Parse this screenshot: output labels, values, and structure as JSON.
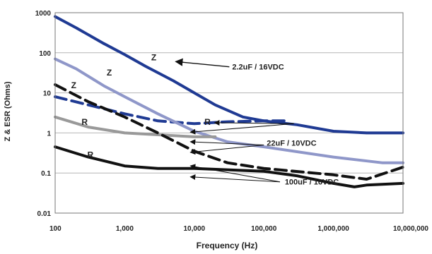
{
  "chart_data": {
    "type": "line",
    "xlabel": "Frequency (Hz)",
    "ylabel": "Z & ESR (Ohms)",
    "x_scale": "log",
    "y_scale": "log",
    "xlim": [
      100,
      10000000
    ],
    "ylim": [
      0.01,
      1000
    ],
    "grid": "horizontal",
    "x_tick_labels": [
      "100",
      "1,000",
      "10,000",
      "100,000",
      "1,000,000",
      "10,000,000"
    ],
    "y_tick_labels": [
      "0.01",
      "0.1",
      "1",
      "10",
      "100",
      "1000"
    ],
    "series": [
      {
        "capacitor": "2.2uF / 16VDC",
        "quantity": "Z",
        "color": "#1f3a93",
        "dash": false,
        "points": [
          [
            100,
            800
          ],
          [
            200,
            420
          ],
          [
            500,
            170
          ],
          [
            1000,
            90
          ],
          [
            2000,
            46
          ],
          [
            5000,
            20
          ],
          [
            10000,
            10
          ],
          [
            20000,
            5
          ],
          [
            50000,
            2.5
          ],
          [
            100000,
            2
          ],
          [
            300000,
            1.6
          ],
          [
            1000000,
            1.1
          ],
          [
            3000000,
            1.0
          ],
          [
            10000000,
            1.0
          ]
        ]
      },
      {
        "capacitor": "2.2uF / 16VDC",
        "quantity": "R",
        "color": "#1f3a93",
        "dash": true,
        "points": [
          [
            100,
            8
          ],
          [
            300,
            5
          ],
          [
            1000,
            3
          ],
          [
            3000,
            2
          ],
          [
            10000,
            1.7
          ],
          [
            30000,
            1.9
          ],
          [
            100000,
            2.0
          ],
          [
            200000,
            2.0
          ]
        ]
      },
      {
        "capacitor": "22uF / 10VDC",
        "quantity": "Z",
        "color": "#8f97c9",
        "dash": false,
        "points": [
          [
            100,
            70
          ],
          [
            200,
            40
          ],
          [
            500,
            15
          ],
          [
            1000,
            8
          ],
          [
            3000,
            3
          ],
          [
            10000,
            1.1
          ],
          [
            30000,
            0.6
          ],
          [
            100000,
            0.45
          ],
          [
            1000000,
            0.25
          ],
          [
            5000000,
            0.18
          ],
          [
            10000000,
            0.18
          ]
        ]
      },
      {
        "capacitor": "22uF / 10VDC",
        "quantity": "R",
        "color": "#999999",
        "dash": false,
        "points": [
          [
            100,
            2.5
          ],
          [
            300,
            1.4
          ],
          [
            1000,
            1.0
          ],
          [
            3000,
            0.9
          ],
          [
            10000,
            0.8
          ],
          [
            20000,
            0.8
          ]
        ]
      },
      {
        "capacitor": "100uF / 16VDC",
        "quantity": "Z",
        "color": "#111111",
        "dash": true,
        "points": [
          [
            100,
            16
          ],
          [
            300,
            6
          ],
          [
            1000,
            2.5
          ],
          [
            3000,
            1.0
          ],
          [
            10000,
            0.35
          ],
          [
            30000,
            0.18
          ],
          [
            100000,
            0.13
          ],
          [
            1000000,
            0.09
          ],
          [
            3000000,
            0.07
          ],
          [
            10000000,
            0.14
          ]
        ]
      },
      {
        "capacitor": "100uF / 16VDC",
        "quantity": "R",
        "color": "#111111",
        "dash": false,
        "points": [
          [
            100,
            0.45
          ],
          [
            300,
            0.25
          ],
          [
            1000,
            0.15
          ],
          [
            3000,
            0.13
          ],
          [
            10000,
            0.13
          ],
          [
            100000,
            0.11
          ],
          [
            300000,
            0.085
          ],
          [
            1000000,
            0.055
          ],
          [
            2000000,
            0.045
          ],
          [
            3000000,
            0.05
          ],
          [
            10000000,
            0.055
          ]
        ]
      }
    ],
    "annotations": [
      {
        "text": "Z",
        "x": 2400,
        "y": 65,
        "arrow_to": null
      },
      {
        "text": "2.2uF / 16VDC",
        "x": 35000,
        "y": 38,
        "arrow_to": [
          5600,
          60
        ]
      },
      {
        "text": "Z",
        "x": 550,
        "y": 27,
        "arrow_to": null
      },
      {
        "text": "Z",
        "x": 170,
        "y": 13,
        "arrow_to": null
      },
      {
        "text": "R",
        "x": 14000,
        "y": 1.6,
        "arrow_to": null
      },
      {
        "text": "R",
        "x": 240,
        "y": 1.6,
        "arrow_to": null
      },
      {
        "text": "R",
        "x": 290,
        "y": 0.24,
        "arrow_to": null
      },
      {
        "text": "22uF / 10VDC",
        "x": 110000,
        "y": 0.48,
        "arrow_to": null
      },
      {
        "text": "100uF / 16VDC",
        "x": 200000,
        "y": 0.052,
        "arrow_to": null
      }
    ]
  }
}
